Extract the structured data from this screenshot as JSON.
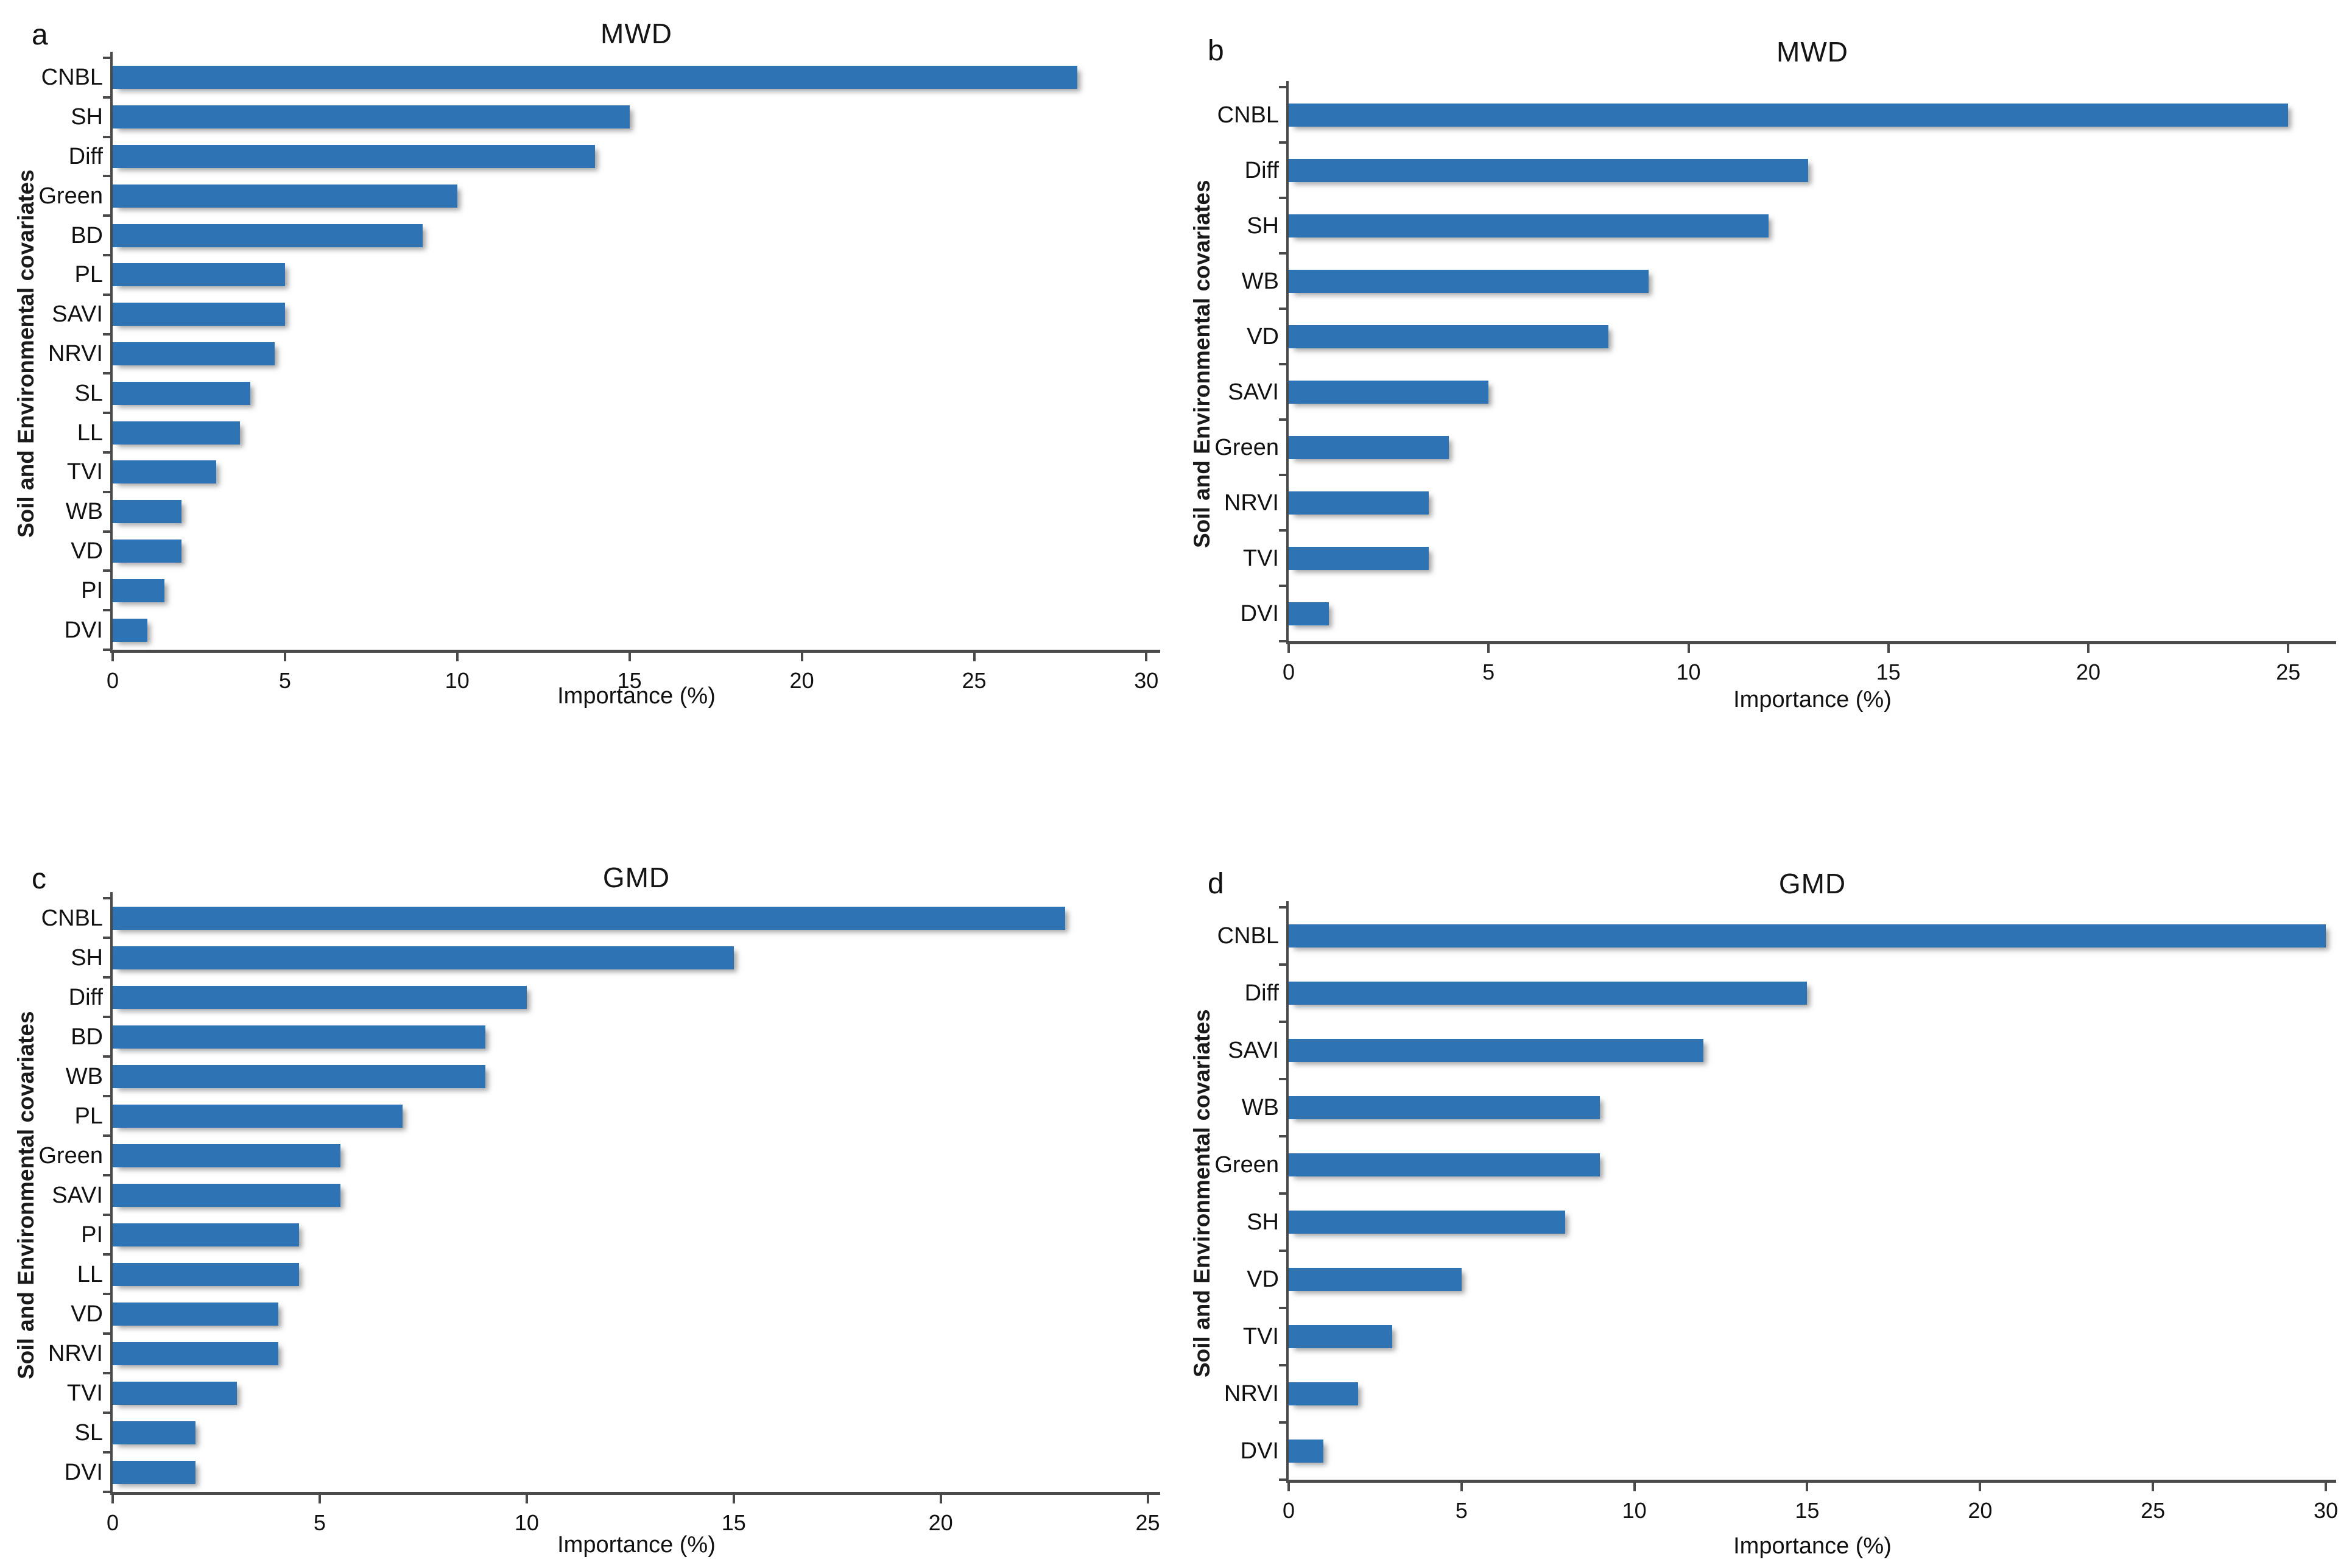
{
  "figure": {
    "background": "#ffffff",
    "bar_color": "#2E74B4",
    "axis_color": "#4A4A4A",
    "text_color": "#111111"
  },
  "chart_data": [
    {
      "panel_letter": "a",
      "type": "bar",
      "orientation": "horizontal",
      "title": "MWD",
      "xlabel": "Importance (%)",
      "ylabel": "Soil and Environmental covariates",
      "categories": [
        "CNBL",
        "SH",
        "Diff",
        "Green",
        "BD",
        "PL",
        "SAVI",
        "NRVI",
        "SL",
        "LL",
        "TVI",
        "WB",
        "VD",
        "PI",
        "DVI"
      ],
      "values": [
        28,
        15,
        14,
        10,
        9,
        5,
        5,
        4.7,
        4,
        3.7,
        3,
        2,
        2,
        1.5,
        1
      ],
      "xlim": [
        0,
        30.4
      ],
      "xticks": [
        0,
        5,
        10,
        15,
        20,
        25,
        30
      ],
      "grid": false,
      "legend": null
    },
    {
      "panel_letter": "b",
      "type": "bar",
      "orientation": "horizontal",
      "title": "MWD",
      "xlabel": "Importance (%)",
      "ylabel": "Soil and Environmental covariates",
      "categories": [
        "CNBL",
        "Diff",
        "SH",
        "WB",
        "VD",
        "SAVI",
        "Green",
        "NRVI",
        "TVI",
        "DVI"
      ],
      "values": [
        25,
        13,
        12,
        9,
        8,
        5,
        4,
        3.5,
        3.5,
        1
      ],
      "xlim": [
        0,
        26.2
      ],
      "xticks": [
        0,
        5,
        10,
        15,
        20,
        25
      ],
      "grid": false,
      "legend": null
    },
    {
      "panel_letter": "c",
      "type": "bar",
      "orientation": "horizontal",
      "title": "GMD",
      "xlabel": "Importance (%)",
      "ylabel": "Soil and Environmental covariates",
      "categories": [
        "CNBL",
        "SH",
        "Diff",
        "BD",
        "WB",
        "PL",
        "Green",
        "SAVI",
        "PI",
        "LL",
        "VD",
        "NRVI",
        "TVI",
        "SL",
        "DVI"
      ],
      "values": [
        23,
        15,
        10,
        9,
        9,
        7,
        5.5,
        5.5,
        4.5,
        4.5,
        4,
        4,
        3,
        2,
        2
      ],
      "xlim": [
        0,
        25.3
      ],
      "xticks": [
        0,
        5,
        10,
        15,
        20,
        25
      ],
      "grid": false,
      "legend": null
    },
    {
      "panel_letter": "d",
      "type": "bar",
      "orientation": "horizontal",
      "title": "GMD",
      "xlabel": "Importance (%)",
      "ylabel": "Soil and Environmental covariates",
      "categories": [
        "CNBL",
        "Diff",
        "SAVI",
        "WB",
        "Green",
        "SH",
        "VD",
        "TVI",
        "NRVI",
        "DVI"
      ],
      "values": [
        30,
        15,
        12,
        9,
        9,
        8,
        5,
        3,
        2,
        1
      ],
      "xlim": [
        0,
        30.3
      ],
      "xticks": [
        0,
        5,
        10,
        15,
        20,
        25,
        30
      ],
      "grid": false,
      "legend": null
    }
  ]
}
